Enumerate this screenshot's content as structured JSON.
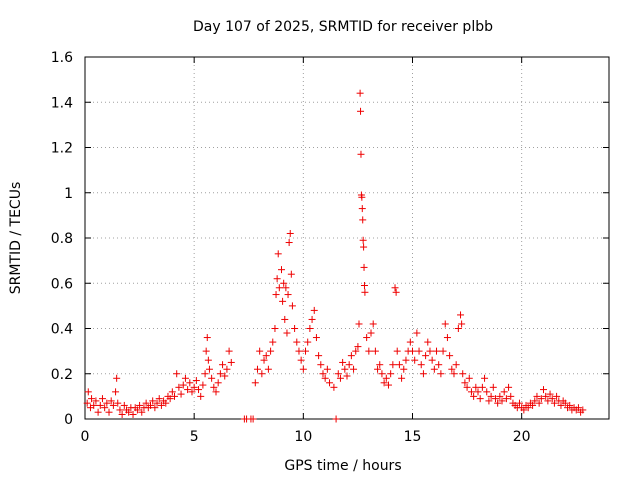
{
  "chart_data": {
    "type": "scatter",
    "title": "Day 107 of 2025, SRMTID for receiver plbb",
    "xlabel": "GPS time / hours",
    "ylabel": "SRMTID / TECUs",
    "xlim": [
      0,
      24
    ],
    "ylim": [
      0,
      1.6
    ],
    "x_ticks": [
      0,
      5,
      10,
      15,
      20
    ],
    "x_tick_labels": [
      "0",
      "5",
      "10",
      "15",
      "20"
    ],
    "y_ticks": [
      0,
      0.2,
      0.4,
      0.6,
      0.8,
      1.0,
      1.2,
      1.4,
      1.6
    ],
    "y_tick_labels": [
      "0",
      "0.2",
      "0.4",
      "0.6",
      "0.8",
      "1",
      "1.2",
      "1.4",
      "1.6"
    ],
    "grid": true,
    "marker": "+",
    "marker_color": "#ee0000",
    "series": [
      {
        "name": "SRMTID",
        "points": [
          [
            0.1,
            0.07
          ],
          [
            0.15,
            0.12
          ],
          [
            0.25,
            0.05
          ],
          [
            0.3,
            0.09
          ],
          [
            0.4,
            0.06
          ],
          [
            0.5,
            0.08
          ],
          [
            0.6,
            0.03
          ],
          [
            0.7,
            0.06
          ],
          [
            0.8,
            0.09
          ],
          [
            0.9,
            0.05
          ],
          [
            1.0,
            0.07
          ],
          [
            1.1,
            0.03
          ],
          [
            1.2,
            0.08
          ],
          [
            1.3,
            0.06
          ],
          [
            1.4,
            0.12
          ],
          [
            1.45,
            0.18
          ],
          [
            1.5,
            0.07
          ],
          [
            1.6,
            0.04
          ],
          [
            1.7,
            0.02
          ],
          [
            1.8,
            0.06
          ],
          [
            1.9,
            0.04
          ],
          [
            2.0,
            0.03
          ],
          [
            2.1,
            0.05
          ],
          [
            2.2,
            0.02
          ],
          [
            2.3,
            0.05
          ],
          [
            2.4,
            0.04
          ],
          [
            2.5,
            0.06
          ],
          [
            2.6,
            0.03
          ],
          [
            2.7,
            0.05
          ],
          [
            2.8,
            0.07
          ],
          [
            2.9,
            0.05
          ],
          [
            3.0,
            0.06
          ],
          [
            3.1,
            0.08
          ],
          [
            3.2,
            0.05
          ],
          [
            3.3,
            0.07
          ],
          [
            3.4,
            0.09
          ],
          [
            3.5,
            0.06
          ],
          [
            3.6,
            0.08
          ],
          [
            3.7,
            0.07
          ],
          [
            3.8,
            0.1
          ],
          [
            3.9,
            0.09
          ],
          [
            4.0,
            0.12
          ],
          [
            4.1,
            0.1
          ],
          [
            4.2,
            0.2
          ],
          [
            4.3,
            0.14
          ],
          [
            4.4,
            0.11
          ],
          [
            4.5,
            0.15
          ],
          [
            4.6,
            0.18
          ],
          [
            4.7,
            0.13
          ],
          [
            4.8,
            0.16
          ],
          [
            4.9,
            0.12
          ],
          [
            5.0,
            0.14
          ],
          [
            5.1,
            0.17
          ],
          [
            5.2,
            0.13
          ],
          [
            5.3,
            0.1
          ],
          [
            5.4,
            0.15
          ],
          [
            5.5,
            0.2
          ],
          [
            5.55,
            0.3
          ],
          [
            5.6,
            0.36
          ],
          [
            5.65,
            0.26
          ],
          [
            5.7,
            0.22
          ],
          [
            5.8,
            0.18
          ],
          [
            5.9,
            0.14
          ],
          [
            6.0,
            0.12
          ],
          [
            6.1,
            0.16
          ],
          [
            6.2,
            0.2
          ],
          [
            6.3,
            0.24
          ],
          [
            6.4,
            0.19
          ],
          [
            6.5,
            0.22
          ],
          [
            6.6,
            0.3
          ],
          [
            6.7,
            0.25
          ],
          [
            7.3,
            0.0
          ],
          [
            7.4,
            0.0
          ],
          [
            7.6,
            0.0
          ],
          [
            7.7,
            0.0
          ],
          [
            7.8,
            0.16
          ],
          [
            7.9,
            0.22
          ],
          [
            8.0,
            0.3
          ],
          [
            8.1,
            0.2
          ],
          [
            8.2,
            0.26
          ],
          [
            8.3,
            0.28
          ],
          [
            8.4,
            0.22
          ],
          [
            8.5,
            0.3
          ],
          [
            8.6,
            0.34
          ],
          [
            8.7,
            0.4
          ],
          [
            8.75,
            0.55
          ],
          [
            8.8,
            0.62
          ],
          [
            8.85,
            0.73
          ],
          [
            8.9,
            0.58
          ],
          [
            9.0,
            0.66
          ],
          [
            9.05,
            0.52
          ],
          [
            9.1,
            0.6
          ],
          [
            9.15,
            0.44
          ],
          [
            9.2,
            0.58
          ],
          [
            9.25,
            0.38
          ],
          [
            9.3,
            0.55
          ],
          [
            9.35,
            0.78
          ],
          [
            9.4,
            0.82
          ],
          [
            9.45,
            0.64
          ],
          [
            9.5,
            0.5
          ],
          [
            9.6,
            0.4
          ],
          [
            9.7,
            0.34
          ],
          [
            9.8,
            0.3
          ],
          [
            9.9,
            0.26
          ],
          [
            10.0,
            0.22
          ],
          [
            10.1,
            0.3
          ],
          [
            10.2,
            0.34
          ],
          [
            10.3,
            0.4
          ],
          [
            10.4,
            0.44
          ],
          [
            10.5,
            0.48
          ],
          [
            10.6,
            0.36
          ],
          [
            10.7,
            0.28
          ],
          [
            10.8,
            0.24
          ],
          [
            10.9,
            0.2
          ],
          [
            11.0,
            0.18
          ],
          [
            11.1,
            0.22
          ],
          [
            11.2,
            0.16
          ],
          [
            11.4,
            0.14
          ],
          [
            11.5,
            0.0
          ],
          [
            11.6,
            0.2
          ],
          [
            11.7,
            0.18
          ],
          [
            11.8,
            0.25
          ],
          [
            11.9,
            0.22
          ],
          [
            12.0,
            0.19
          ],
          [
            12.1,
            0.24
          ],
          [
            12.2,
            0.28
          ],
          [
            12.3,
            0.22
          ],
          [
            12.4,
            0.3
          ],
          [
            12.5,
            0.32
          ],
          [
            12.55,
            0.42
          ],
          [
            12.6,
            1.44
          ],
          [
            12.62,
            1.36
          ],
          [
            12.64,
            1.17
          ],
          [
            12.66,
            0.99
          ],
          [
            12.68,
            0.98
          ],
          [
            12.7,
            0.93
          ],
          [
            12.72,
            0.88
          ],
          [
            12.74,
            0.79
          ],
          [
            12.76,
            0.76
          ],
          [
            12.78,
            0.67
          ],
          [
            12.8,
            0.59
          ],
          [
            12.82,
            0.56
          ],
          [
            12.9,
            0.36
          ],
          [
            13.0,
            0.3
          ],
          [
            13.1,
            0.38
          ],
          [
            13.2,
            0.42
          ],
          [
            13.3,
            0.3
          ],
          [
            13.4,
            0.22
          ],
          [
            13.5,
            0.24
          ],
          [
            13.6,
            0.2
          ],
          [
            13.7,
            0.16
          ],
          [
            13.8,
            0.18
          ],
          [
            13.9,
            0.15
          ],
          [
            14.0,
            0.2
          ],
          [
            14.1,
            0.24
          ],
          [
            14.2,
            0.58
          ],
          [
            14.25,
            0.56
          ],
          [
            14.3,
            0.3
          ],
          [
            14.4,
            0.24
          ],
          [
            14.5,
            0.18
          ],
          [
            14.6,
            0.22
          ],
          [
            14.7,
            0.26
          ],
          [
            14.8,
            0.3
          ],
          [
            14.9,
            0.34
          ],
          [
            15.0,
            0.3
          ],
          [
            15.1,
            0.26
          ],
          [
            15.2,
            0.38
          ],
          [
            15.3,
            0.3
          ],
          [
            15.4,
            0.24
          ],
          [
            15.5,
            0.2
          ],
          [
            15.6,
            0.28
          ],
          [
            15.7,
            0.34
          ],
          [
            15.8,
            0.3
          ],
          [
            15.9,
            0.26
          ],
          [
            16.0,
            0.22
          ],
          [
            16.1,
            0.3
          ],
          [
            16.2,
            0.24
          ],
          [
            16.3,
            0.2
          ],
          [
            16.4,
            0.3
          ],
          [
            16.5,
            0.42
          ],
          [
            16.6,
            0.36
          ],
          [
            16.7,
            0.28
          ],
          [
            16.8,
            0.22
          ],
          [
            16.9,
            0.2
          ],
          [
            17.0,
            0.24
          ],
          [
            17.1,
            0.4
          ],
          [
            17.2,
            0.46
          ],
          [
            17.25,
            0.42
          ],
          [
            17.3,
            0.2
          ],
          [
            17.4,
            0.16
          ],
          [
            17.5,
            0.14
          ],
          [
            17.6,
            0.18
          ],
          [
            17.7,
            0.12
          ],
          [
            17.8,
            0.1
          ],
          [
            17.9,
            0.14
          ],
          [
            18.0,
            0.12
          ],
          [
            18.1,
            0.09
          ],
          [
            18.2,
            0.14
          ],
          [
            18.3,
            0.18
          ],
          [
            18.4,
            0.12
          ],
          [
            18.5,
            0.08
          ],
          [
            18.6,
            0.1
          ],
          [
            18.7,
            0.14
          ],
          [
            18.8,
            0.09
          ],
          [
            18.9,
            0.07
          ],
          [
            19.0,
            0.1
          ],
          [
            19.1,
            0.08
          ],
          [
            19.2,
            0.12
          ],
          [
            19.3,
            0.09
          ],
          [
            19.4,
            0.14
          ],
          [
            19.5,
            0.1
          ],
          [
            19.6,
            0.07
          ],
          [
            19.7,
            0.06
          ],
          [
            19.8,
            0.05
          ],
          [
            19.9,
            0.07
          ],
          [
            20.0,
            0.05
          ],
          [
            20.1,
            0.04
          ],
          [
            20.2,
            0.06
          ],
          [
            20.3,
            0.05
          ],
          [
            20.4,
            0.07
          ],
          [
            20.5,
            0.06
          ],
          [
            20.6,
            0.08
          ],
          [
            20.7,
            0.1
          ],
          [
            20.8,
            0.07
          ],
          [
            20.9,
            0.09
          ],
          [
            21.0,
            0.13
          ],
          [
            21.1,
            0.1
          ],
          [
            21.2,
            0.08
          ],
          [
            21.3,
            0.11
          ],
          [
            21.4,
            0.09
          ],
          [
            21.5,
            0.07
          ],
          [
            21.6,
            0.1
          ],
          [
            21.7,
            0.08
          ],
          [
            21.8,
            0.06
          ],
          [
            21.9,
            0.08
          ],
          [
            22.0,
            0.07
          ],
          [
            22.1,
            0.05
          ],
          [
            22.2,
            0.06
          ],
          [
            22.3,
            0.04
          ],
          [
            22.4,
            0.05
          ],
          [
            22.5,
            0.04
          ],
          [
            22.6,
            0.05
          ],
          [
            22.7,
            0.03
          ],
          [
            22.8,
            0.04
          ]
        ]
      }
    ]
  }
}
